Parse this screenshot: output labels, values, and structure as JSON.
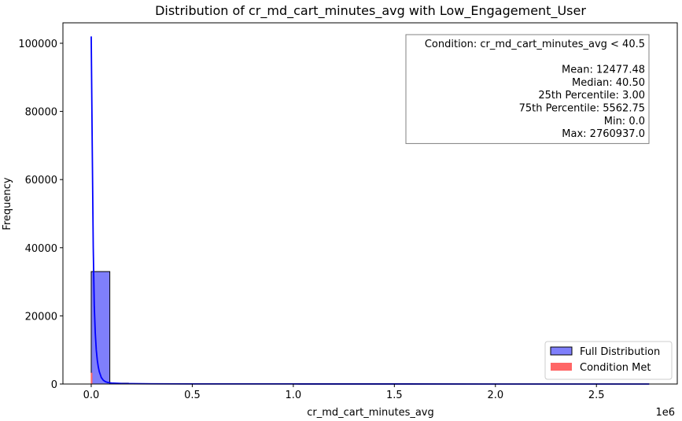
{
  "chart_data": {
    "type": "bar",
    "title": "Distribution of cr_md_cart_minutes_avg with Low_Engagement_User",
    "xlabel": "cr_md_cart_minutes_avg",
    "ylabel": "Frequency",
    "x_offset_label": "1e6",
    "xlim": [
      -140000,
      2900000
    ],
    "ylim": [
      0,
      106000
    ],
    "x_ticks": [
      0,
      500000,
      1000000,
      1500000,
      2000000,
      2500000
    ],
    "x_tick_labels": [
      "0.0",
      "0.5",
      "1.0",
      "1.5",
      "2.0",
      "2.5"
    ],
    "y_ticks": [
      0,
      20000,
      40000,
      60000,
      80000,
      100000
    ],
    "y_tick_labels": [
      "0",
      "20000",
      "40000",
      "60000",
      "80000",
      "100000"
    ],
    "histogram": {
      "name": "Full Distribution",
      "bin_width": 92031.2,
      "bins": [
        {
          "x0": 0,
          "count": 33000
        },
        {
          "x0": 92031.2,
          "count": 250
        },
        {
          "x0": 184062.5,
          "count": 80
        },
        {
          "x0": 276093.7,
          "count": 40
        },
        {
          "x0": 368124.9,
          "count": 25
        },
        {
          "x0": 460156.2,
          "count": 15
        },
        {
          "x0": 552187.4,
          "count": 10
        },
        {
          "x0": 644218.6,
          "count": 8
        },
        {
          "x0": 736249.9,
          "count": 6
        },
        {
          "x0": 828281.1,
          "count": 5
        },
        {
          "x0": 920312.3,
          "count": 4
        },
        {
          "x0": 1012343.6,
          "count": 3
        },
        {
          "x0": 1104374.8,
          "count": 3
        },
        {
          "x0": 1196406.0,
          "count": 2
        },
        {
          "x0": 1288437.3,
          "count": 2
        },
        {
          "x0": 1380468.5,
          "count": 2
        },
        {
          "x0": 1472499.7,
          "count": 1
        },
        {
          "x0": 1564531.0,
          "count": 1
        },
        {
          "x0": 1656562.2,
          "count": 1
        },
        {
          "x0": 1748593.4,
          "count": 1
        },
        {
          "x0": 1840624.7,
          "count": 1
        },
        {
          "x0": 1932655.9,
          "count": 1
        },
        {
          "x0": 2024687.1,
          "count": 1
        },
        {
          "x0": 2116718.4,
          "count": 1
        },
        {
          "x0": 2208749.6,
          "count": 1
        },
        {
          "x0": 2300780.8,
          "count": 1
        },
        {
          "x0": 2392812.1,
          "count": 1
        },
        {
          "x0": 2484843.3,
          "count": 1
        },
        {
          "x0": 2576874.5,
          "count": 1
        },
        {
          "x0": 2668905.8,
          "count": 1
        }
      ],
      "color": "#7f7ffb",
      "edge_color": "#000000"
    },
    "condition_bar": {
      "name": "Condition Met",
      "x0": 0,
      "x1": 40.5,
      "count": 3300,
      "color": "#ff6666"
    },
    "kde": {
      "color": "#0000ff",
      "x": [
        0,
        5000,
        10000,
        15000,
        20000,
        25000,
        30000,
        35000,
        40000,
        50000,
        60000,
        70000,
        80000,
        100000,
        150000,
        200000,
        300000,
        500000,
        1000000,
        1500000,
        2000000,
        2500000,
        2760937
      ],
      "y": [
        102000,
        70000,
        40000,
        23000,
        15000,
        10000,
        7000,
        5000,
        3600,
        1900,
        1100,
        700,
        480,
        280,
        150,
        100,
        60,
        35,
        20,
        12,
        8,
        5,
        4
      ]
    },
    "legend": {
      "placement": "lower-right",
      "entries": [
        {
          "label": "Full Distribution",
          "color": "#7f7ffb",
          "edge": "#000000"
        },
        {
          "label": "Condition Met",
          "color": "#ff6666",
          "edge": "none"
        }
      ]
    },
    "stats_box": {
      "placement": "upper-right",
      "lines": [
        "Condition: cr_md_cart_minutes_avg < 40.5",
        "",
        "Mean: 12477.48",
        "Median: 40.50",
        "25th Percentile: 3.00",
        "75th Percentile: 5562.75",
        "Min: 0.0",
        "Max: 2760937.0"
      ]
    },
    "grid": false
  }
}
